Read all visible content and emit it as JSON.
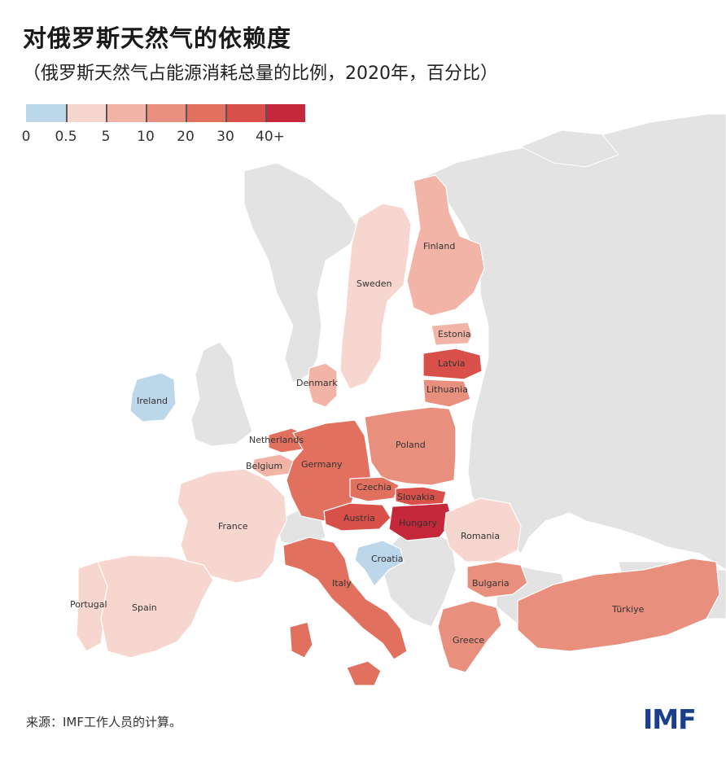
{
  "header": {
    "title": "对俄罗斯天然气的依赖度",
    "subtitle": "（俄罗斯天然气占能源消耗总量的比例，2020年，百分比）"
  },
  "legend": {
    "bins": [
      {
        "label": "0",
        "color": "#bcd6ea"
      },
      {
        "label": "0.5",
        "color": "#f7d6cf"
      },
      {
        "label": "5",
        "color": "#f1b4a6"
      },
      {
        "label": "10",
        "color": "#e98f7e"
      },
      {
        "label": "20",
        "color": "#e2705f"
      },
      {
        "label": "30",
        "color": "#d9504a"
      },
      {
        "label": "40+",
        "color": "#c4283a"
      }
    ]
  },
  "map": {
    "background_color": "#e3e3e3",
    "sea_color": "#ffffff",
    "countries": [
      {
        "name": "Finland",
        "bin": 2
      },
      {
        "name": "Sweden",
        "bin": 1
      },
      {
        "name": "Estonia",
        "bin": 2
      },
      {
        "name": "Latvia",
        "bin": 5
      },
      {
        "name": "Lithuania",
        "bin": 3
      },
      {
        "name": "Denmark",
        "bin": 2
      },
      {
        "name": "Ireland",
        "bin": 0
      },
      {
        "name": "Netherlands",
        "bin": 4
      },
      {
        "name": "Belgium",
        "bin": 2
      },
      {
        "name": "Germany",
        "bin": 4
      },
      {
        "name": "Poland",
        "bin": 3
      },
      {
        "name": "Czechia",
        "bin": 4
      },
      {
        "name": "Slovakia",
        "bin": 5
      },
      {
        "name": "Austria",
        "bin": 5
      },
      {
        "name": "Hungary",
        "bin": 6
      },
      {
        "name": "France",
        "bin": 1
      },
      {
        "name": "Romania",
        "bin": 1
      },
      {
        "name": "Croatia",
        "bin": 0
      },
      {
        "name": "Italy",
        "bin": 4
      },
      {
        "name": "Bulgaria",
        "bin": 3
      },
      {
        "name": "Portugal",
        "bin": 1
      },
      {
        "name": "Spain",
        "bin": 1
      },
      {
        "name": "Greece",
        "bin": 3
      },
      {
        "name": "Türkiye",
        "bin": 3
      }
    ]
  },
  "footer": {
    "source": "来源：IMF工作人员的计算。",
    "logo": "IMF",
    "logo_color": "#1b3f8c"
  }
}
